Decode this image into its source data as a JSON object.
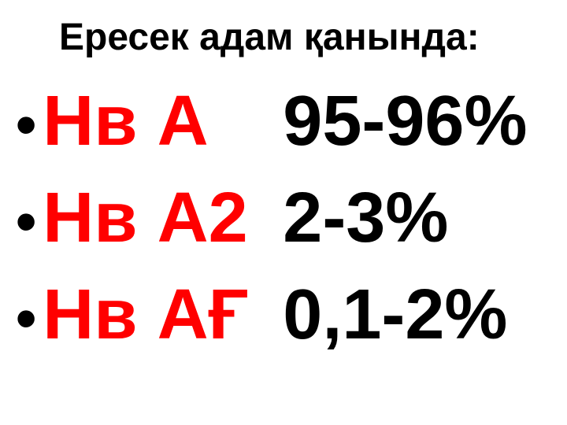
{
  "title": "Ересек адам қанында:",
  "rows": [
    {
      "bullet": "•",
      "label": "Нв А",
      "value": "95-96%"
    },
    {
      "bullet": "•",
      "label": "Нв А2",
      "value": "2-3%"
    },
    {
      "bullet": "•",
      "label": "Нв АҒ",
      "value": "0,1-2%"
    }
  ],
  "styling": {
    "title_fontsize": 48,
    "title_color": "#000000",
    "label_fontsize": 90,
    "label_color": "#ff0000",
    "value_fontsize": 90,
    "value_color": "#000000",
    "bullet_color": "#000000",
    "background_color": "#ffffff",
    "font_family": "Arial",
    "font_weight": "bold"
  }
}
